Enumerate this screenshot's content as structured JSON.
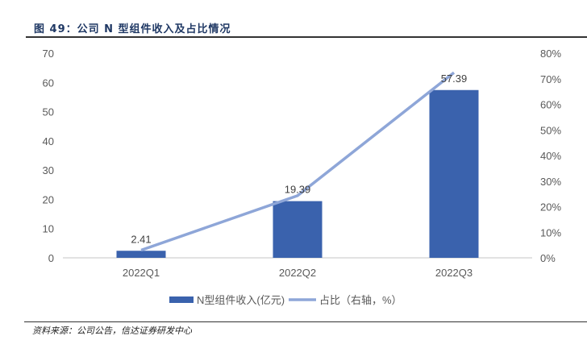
{
  "title": "图 49：公司 N 型组件收入及占比情况",
  "source": "资料来源：公司公告，信达证券研发中心",
  "chart_data": {
    "type": "bar+line",
    "categories": [
      "2022Q1",
      "2022Q2",
      "2022Q3"
    ],
    "series": [
      {
        "name": "N型组件收入(亿元)",
        "type": "bar",
        "axis": "left",
        "values": [
          2.41,
          19.39,
          57.39
        ],
        "labels": [
          "2.41",
          "19.39",
          "57.39"
        ],
        "color": "#3a62ad"
      },
      {
        "name": "占比（右轴，%）",
        "type": "line",
        "axis": "right",
        "values": [
          3.0,
          24.3,
          72.4
        ],
        "color": "#8ea6d8"
      }
    ],
    "y_left": {
      "range": [
        0,
        70
      ],
      "ticks": [
        "0",
        "10",
        "20",
        "30",
        "40",
        "50",
        "60",
        "70"
      ]
    },
    "y_right": {
      "range": [
        0,
        80
      ],
      "ticks": [
        "0%",
        "10%",
        "20%",
        "30%",
        "40%",
        "50%",
        "60%",
        "70%",
        "80%"
      ]
    },
    "grid": false,
    "legend_position": "bottom"
  }
}
